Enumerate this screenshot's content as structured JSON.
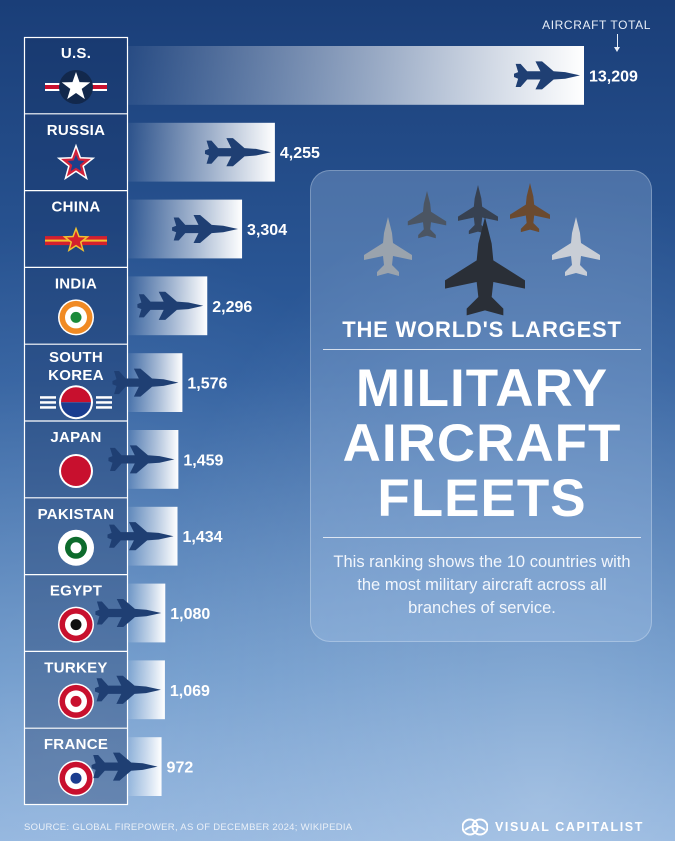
{
  "header": {
    "total_label": "AIRCRAFT TOTAL"
  },
  "panel": {
    "subtitle": "THE WORLD'S LARGEST",
    "title_lines": [
      "MILITARY",
      "AIRCRAFT",
      "FLEETS"
    ],
    "description": "This ranking shows the 10 countries with the most military aircraft across all branches of service."
  },
  "footer": {
    "source": "SOURCE: GLOBAL FIREPOWER, AS OF DECEMBER 2024; WIKIPEDIA",
    "brand": "VISUAL CAPITALIST"
  },
  "icons": {
    "bar_icon": "fighter-jet-icon",
    "brand_icon": "visual-capitalist-logo-icon"
  },
  "colors": {
    "bar_start": "#ffffff",
    "jet": "#1f3f73",
    "flag_border": "#ffffff"
  },
  "chart_data": {
    "type": "bar",
    "orientation": "horizontal",
    "title": "THE WORLD'S LARGEST MILITARY AIRCRAFT FLEETS",
    "categories": [
      "U.S.",
      "RUSSIA",
      "CHINA",
      "INDIA",
      "SOUTH KOREA",
      "JAPAN",
      "PAKISTAN",
      "EGYPT",
      "TURKEY",
      "FRANCE"
    ],
    "category_lines": [
      [
        "U.S."
      ],
      [
        "RUSSIA"
      ],
      [
        "CHINA"
      ],
      [
        "INDIA"
      ],
      [
        "SOUTH",
        "KOREA"
      ],
      [
        "JAPAN"
      ],
      [
        "PAKISTAN"
      ],
      [
        "EGYPT"
      ],
      [
        "TURKEY"
      ],
      [
        "FRANCE"
      ]
    ],
    "flag_icons": [
      "us-roundel-icon",
      "russia-star-icon",
      "china-roundel-icon",
      "india-roundel-icon",
      "south-korea-roundel-icon",
      "japan-roundel-icon",
      "pakistan-roundel-icon",
      "egypt-roundel-icon",
      "turkey-roundel-icon",
      "france-roundel-icon"
    ],
    "values": [
      13209,
      4255,
      3304,
      2296,
      1576,
      1459,
      1434,
      1080,
      1069,
      972
    ],
    "value_labels": [
      "13,209",
      "4,255",
      "3,304",
      "2,296",
      "1,576",
      "1,459",
      "1,434",
      "1,080",
      "1,069",
      "972"
    ],
    "value_axis_label": "AIRCRAFT TOTAL",
    "xlim": [
      0,
      13209
    ],
    "grid": false,
    "legend": "none"
  }
}
